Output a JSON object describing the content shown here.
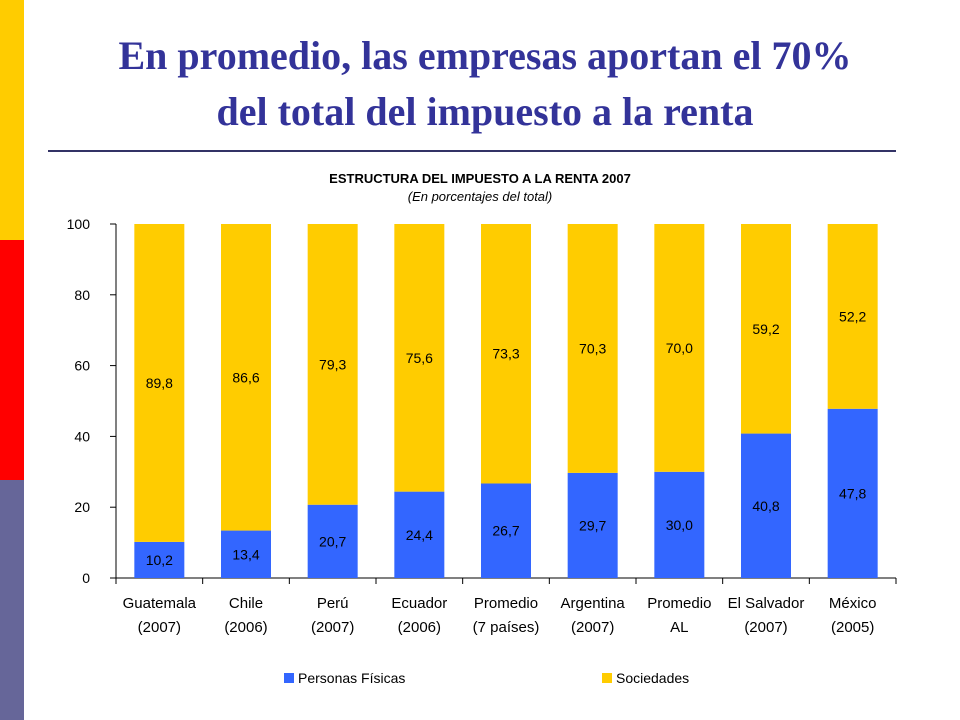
{
  "slide": {
    "title_line1": "En promedio, las empresas aportan el 70%",
    "title_line2": "del total del impuesto a la  renta",
    "accent_colors": [
      "#FFCC00",
      "#FF0000",
      "#666699"
    ],
    "title_color": "#333399"
  },
  "chart_data": {
    "type": "bar",
    "stacked": true,
    "title": "ESTRUCTURA DEL IMPUESTO A LA RENTA 2007",
    "subtitle": "(En porcentajes del total)",
    "categories": [
      [
        "Guatemala",
        "(2007)"
      ],
      [
        "Chile",
        "(2006)"
      ],
      [
        "Perú",
        "(2007)"
      ],
      [
        "Ecuador",
        "(2006)"
      ],
      [
        "Promedio",
        "(7 países)"
      ],
      [
        "Argentina",
        "(2007)"
      ],
      [
        "Promedio",
        "AL"
      ],
      [
        "El Salvador",
        "(2007)"
      ],
      [
        "México",
        "(2005)"
      ]
    ],
    "series": [
      {
        "name": "Personas Físicas",
        "color": "#3366FF",
        "values": [
          10.2,
          13.4,
          20.7,
          24.4,
          26.7,
          29.7,
          30.0,
          40.8,
          47.8
        ],
        "labels": [
          "10,2",
          "13,4",
          "20,7",
          "24,4",
          "26,7",
          "29,7",
          "30,0",
          "40,8",
          "47,8"
        ]
      },
      {
        "name": "Sociedades",
        "color": "#FFCC00",
        "values": [
          89.8,
          86.6,
          79.3,
          75.6,
          73.3,
          70.3,
          70.0,
          59.2,
          52.2
        ],
        "labels": [
          "89,8",
          "86,6",
          "79,3",
          "75,6",
          "73,3",
          "70,3",
          "70,0",
          "59,2",
          "52,2"
        ]
      }
    ],
    "ylim": [
      0,
      100
    ],
    "yticks": [
      0,
      20,
      40,
      60,
      80,
      100
    ],
    "grid": false,
    "legend_position": "bottom"
  }
}
